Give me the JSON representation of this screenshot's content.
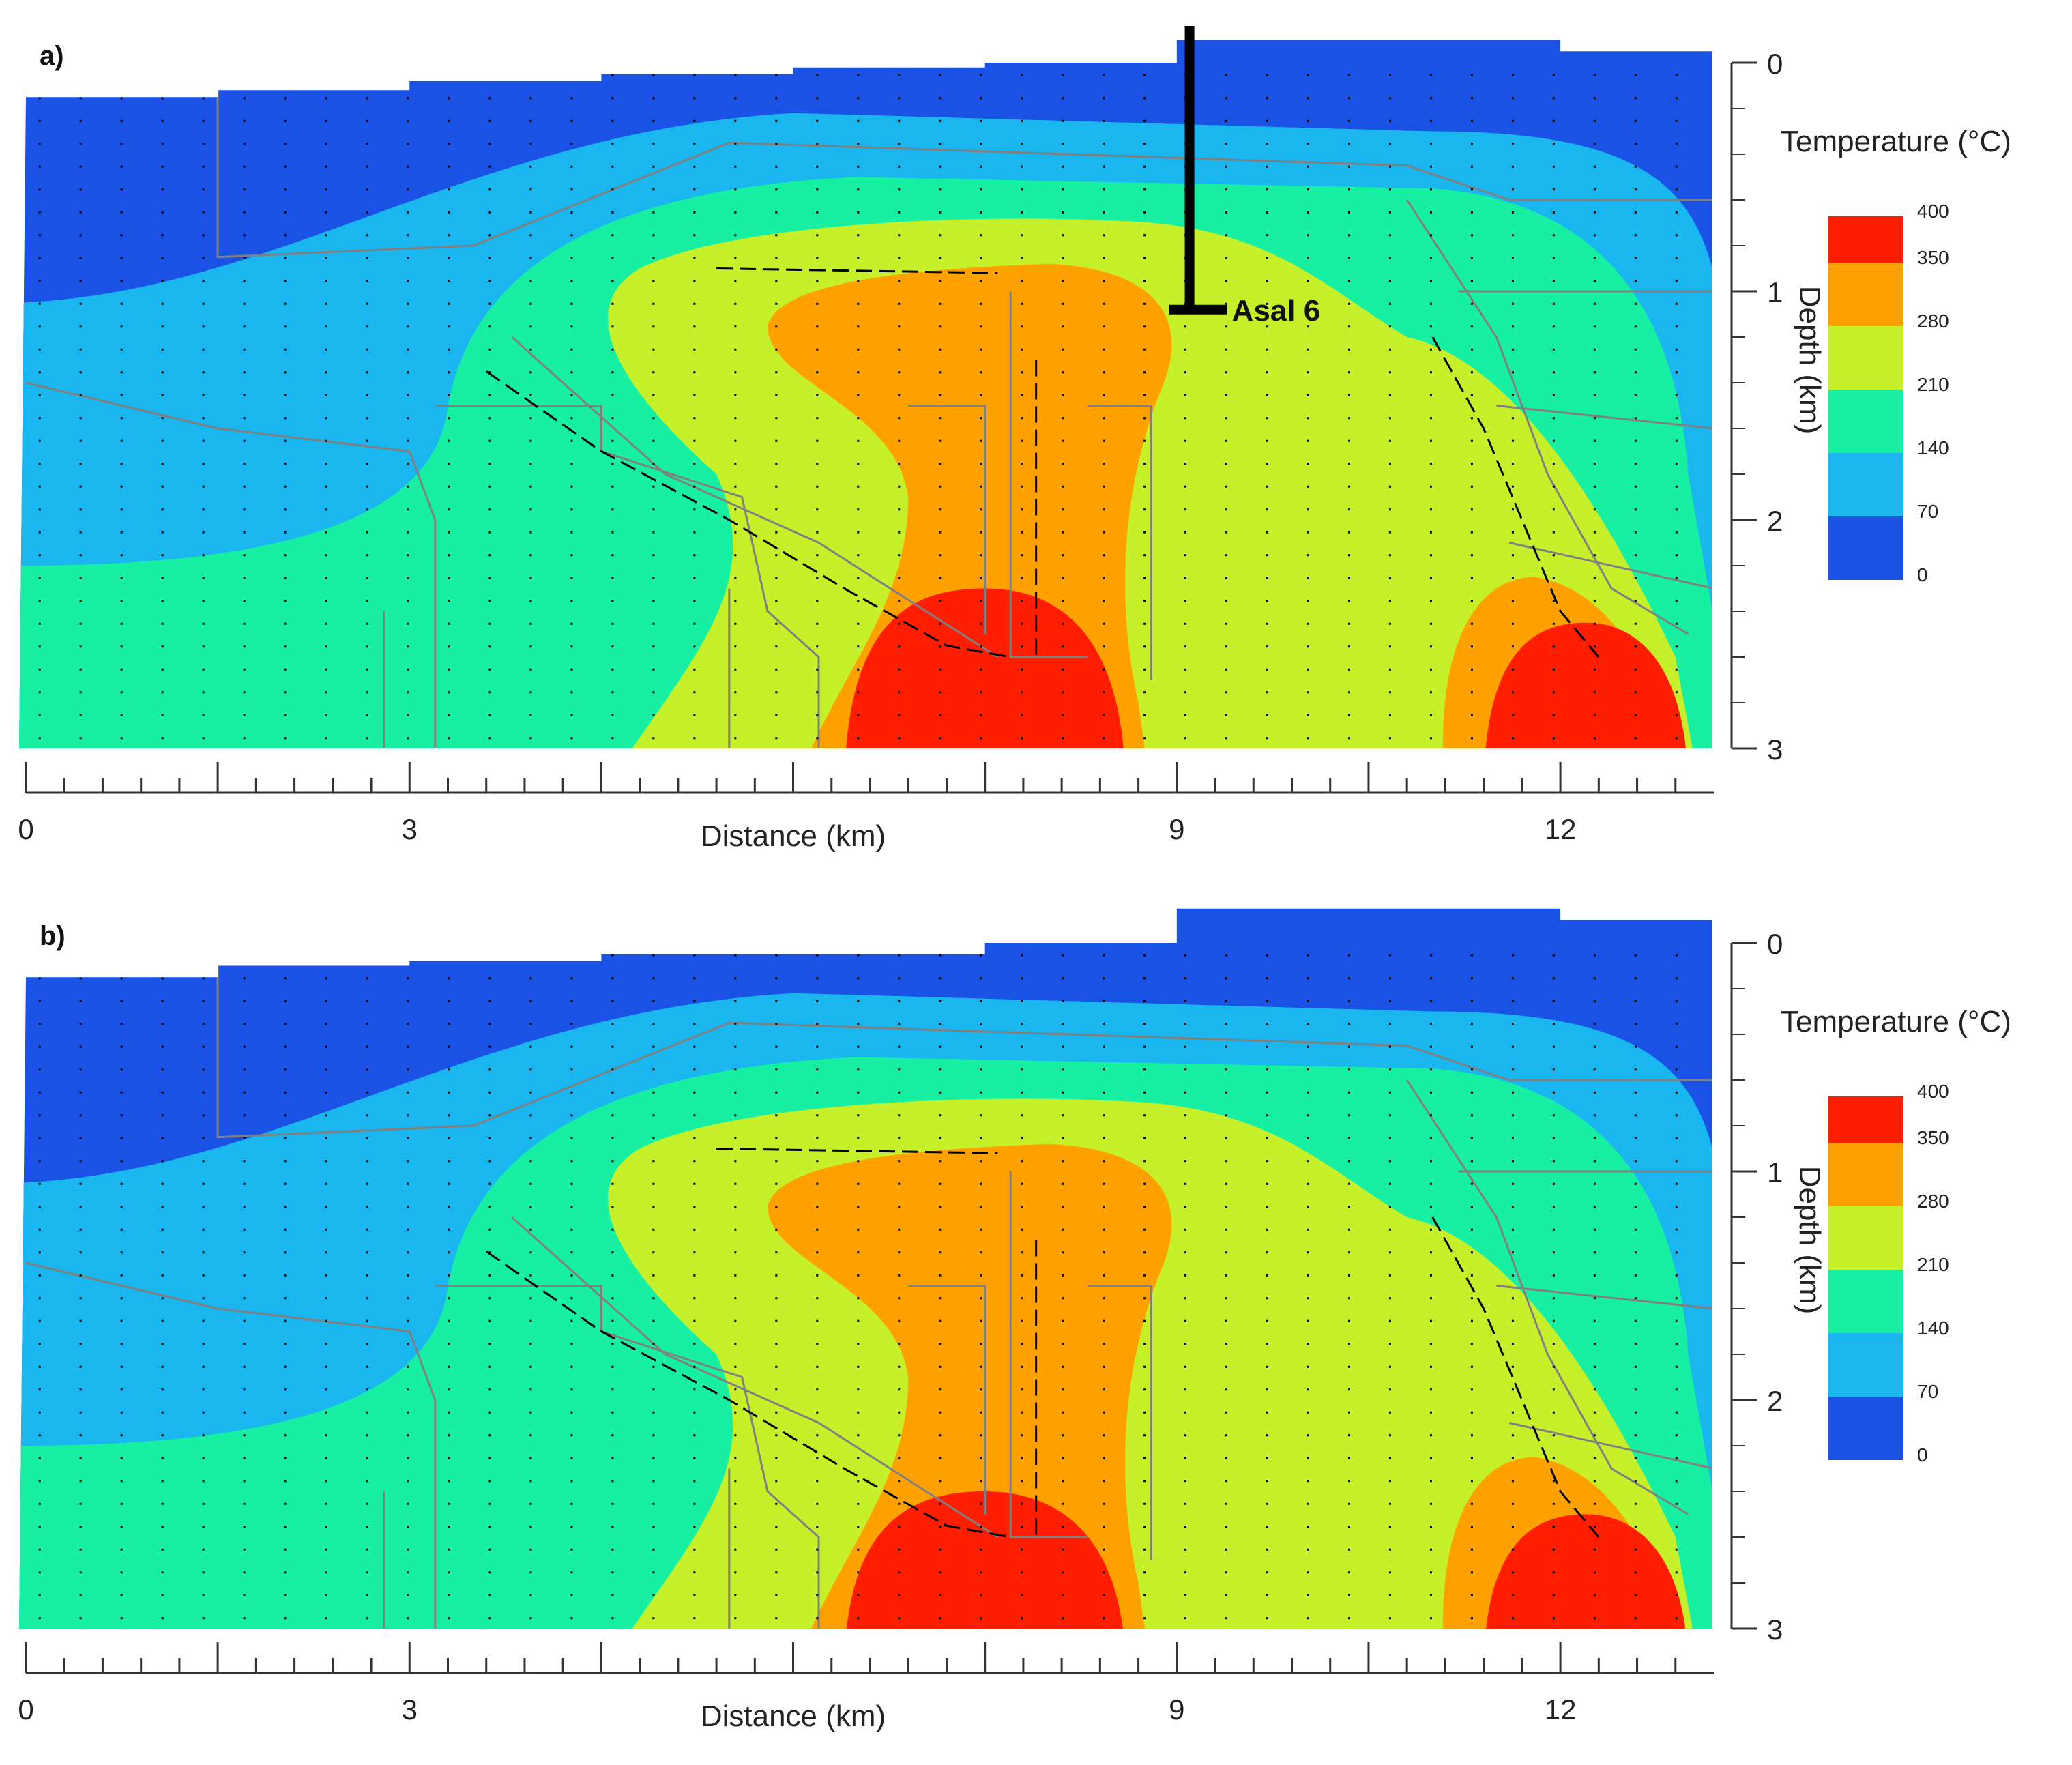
{
  "chart_data": [
    {
      "type": "heatmap",
      "panel_label": "a)",
      "title": "",
      "xlabel": "Distance (km)",
      "ylabel": "Depth (km)",
      "xlim": [
        0,
        13.2
      ],
      "ylim": [
        0,
        3
      ],
      "x_ticks": [
        0,
        3,
        9,
        12
      ],
      "y_ticks": [
        0,
        1,
        2,
        3
      ],
      "colorbar": {
        "title": "Temperature (°C)",
        "levels": [
          0,
          70,
          140,
          210,
          280,
          350,
          400
        ],
        "colors": [
          "#1a52e6",
          "#19b6f0",
          "#17f0a2",
          "#c6f02a",
          "#ffa200",
          "#ff1e00"
        ]
      },
      "topography_depth": [
        [
          0,
          0.15
        ],
        [
          1.5,
          0.12
        ],
        [
          3,
          0.08
        ],
        [
          4.5,
          0.05
        ],
        [
          6,
          0.02
        ],
        [
          7.5,
          0.0
        ],
        [
          9,
          -0.1
        ],
        [
          10.5,
          -0.1
        ],
        [
          12,
          -0.05
        ],
        [
          13.2,
          0.0
        ]
      ],
      "annotations": [
        {
          "text": "Asal 6",
          "x": 9.1,
          "depth_top": -0.15,
          "depth_bottom": 1.08
        }
      ],
      "hot_zones_400C": [
        {
          "x_center": 7.5,
          "depth_top": 2.3,
          "depth_bottom": 3.0
        },
        {
          "x_center": 12.2,
          "depth_top": 2.45,
          "depth_bottom": 3.0
        }
      ]
    },
    {
      "type": "heatmap",
      "panel_label": "b)",
      "title": "",
      "xlabel": "Distance (km)",
      "ylabel": "Depth (km)",
      "xlim": [
        0,
        13.2
      ],
      "ylim": [
        0,
        3
      ],
      "x_ticks": [
        0,
        3,
        9,
        12
      ],
      "y_ticks": [
        0,
        1,
        2,
        3
      ],
      "colorbar": {
        "title": "Temperature (°C)",
        "levels": [
          0,
          70,
          140,
          210,
          280,
          350,
          400
        ],
        "colors": [
          "#1a52e6",
          "#19b6f0",
          "#17f0a2",
          "#c6f02a",
          "#ffa200",
          "#ff1e00"
        ]
      },
      "topography_depth": [
        [
          0,
          0.15
        ],
        [
          1.5,
          0.1
        ],
        [
          3,
          0.08
        ],
        [
          4.5,
          0.05
        ],
        [
          6,
          0.05
        ],
        [
          7.5,
          0.0
        ],
        [
          9,
          -0.15
        ],
        [
          10.5,
          -0.15
        ],
        [
          12,
          -0.1
        ],
        [
          13.2,
          0.0
        ]
      ],
      "annotations": [],
      "hot_zones_400C": [
        {
          "x_center": 7.5,
          "depth_top": 2.4,
          "depth_bottom": 3.0
        },
        {
          "x_center": 12.2,
          "depth_top": 2.5,
          "depth_bottom": 3.0
        }
      ]
    }
  ]
}
